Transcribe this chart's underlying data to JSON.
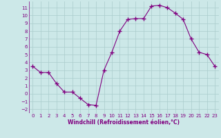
{
  "x": [
    0,
    1,
    2,
    3,
    4,
    5,
    6,
    7,
    8,
    9,
    10,
    11,
    12,
    13,
    14,
    15,
    16,
    17,
    18,
    19,
    20,
    21,
    22,
    23
  ],
  "y": [
    3.5,
    2.7,
    2.7,
    1.3,
    0.2,
    0.2,
    -0.6,
    -1.4,
    -1.5,
    3.0,
    5.3,
    8.0,
    9.5,
    9.6,
    9.6,
    11.2,
    11.3,
    11.0,
    10.3,
    9.5,
    7.0,
    5.3,
    5.0,
    3.5
  ],
  "line_color": "#800080",
  "marker": "+",
  "marker_size": 4,
  "bg_color": "#cce8e8",
  "grid_color": "#aacccc",
  "xlabel": "Windchill (Refroidissement éolien,°C)",
  "xlabel_color": "#800080",
  "tick_color": "#800080",
  "xlim": [
    -0.5,
    23.5
  ],
  "ylim": [
    -2.5,
    11.8
  ],
  "yticks": [
    -2,
    -1,
    0,
    1,
    2,
    3,
    4,
    5,
    6,
    7,
    8,
    9,
    10,
    11
  ],
  "xticks": [
    0,
    1,
    2,
    3,
    4,
    5,
    6,
    7,
    8,
    9,
    10,
    11,
    12,
    13,
    14,
    15,
    16,
    17,
    18,
    19,
    20,
    21,
    22,
    23
  ]
}
